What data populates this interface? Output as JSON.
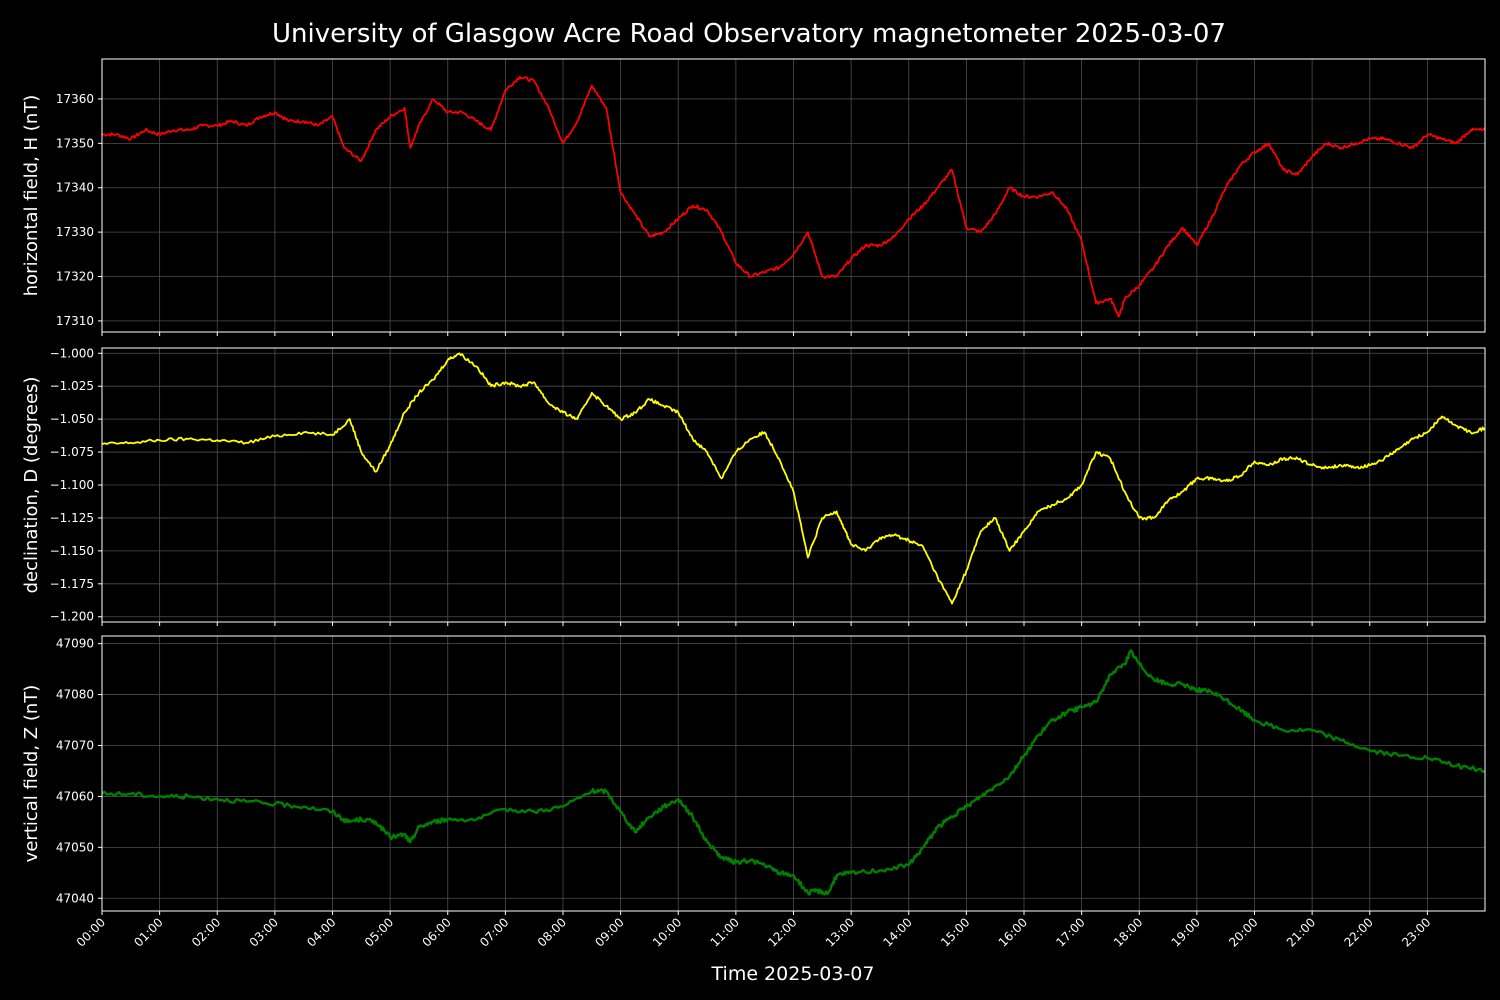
{
  "chart_data": {
    "type": "line",
    "title": "University of Glasgow Acre Road Observatory magnetometer 2025-03-07",
    "xlabel": "Time 2025-03-07",
    "x_ticks": [
      "00:00",
      "01:00",
      "02:00",
      "03:00",
      "04:00",
      "05:00",
      "06:00",
      "07:00",
      "08:00",
      "09:00",
      "10:00",
      "11:00",
      "12:00",
      "13:00",
      "14:00",
      "15:00",
      "16:00",
      "17:00",
      "18:00",
      "19:00",
      "20:00",
      "21:00",
      "22:00",
      "23:00"
    ],
    "xlim_hours": [
      0,
      24
    ],
    "grid": true,
    "panels": [
      {
        "ylabel": "horizontal field, H (nT)",
        "color": "#ff0000",
        "ylim": [
          17307.5,
          17369
        ],
        "y_ticks": [
          17310,
          17320,
          17330,
          17340,
          17350,
          17360
        ],
        "y_tick_labels": [
          "17310",
          "17320",
          "17330",
          "17340",
          "17350",
          "17360"
        ],
        "x": [
          0,
          0.25,
          0.5,
          0.75,
          1.0,
          1.25,
          1.5,
          1.75,
          2.0,
          2.25,
          2.5,
          2.75,
          3.0,
          3.25,
          3.5,
          3.75,
          4.0,
          4.2,
          4.5,
          4.75,
          5.0,
          5.25,
          5.35,
          5.5,
          5.75,
          6.0,
          6.25,
          6.5,
          6.75,
          7.0,
          7.25,
          7.5,
          7.75,
          8.0,
          8.25,
          8.5,
          8.75,
          9.0,
          9.25,
          9.5,
          9.75,
          10.0,
          10.25,
          10.5,
          10.75,
          11.0,
          11.25,
          11.5,
          11.75,
          12.0,
          12.25,
          12.5,
          12.75,
          13.0,
          13.25,
          13.5,
          13.75,
          14.0,
          14.25,
          14.5,
          14.75,
          15.0,
          15.25,
          15.5,
          15.75,
          16.0,
          16.25,
          16.5,
          16.75,
          17.0,
          17.25,
          17.5,
          17.65,
          17.75,
          18.0,
          18.25,
          18.5,
          18.75,
          19.0,
          19.25,
          19.5,
          19.75,
          20.0,
          20.25,
          20.5,
          20.75,
          21.0,
          21.25,
          21.5,
          21.75,
          22.0,
          22.25,
          22.5,
          22.75,
          23.0,
          23.25,
          23.5,
          23.75,
          24.0
        ],
        "y": [
          17352,
          17352,
          17351,
          17353,
          17352,
          17353,
          17353,
          17354,
          17354,
          17355,
          17354,
          17356,
          17357,
          17355,
          17355,
          17354,
          17356,
          17349,
          17346,
          17353,
          17356,
          17358,
          17349,
          17354,
          17360,
          17357,
          17357,
          17355,
          17353,
          17362,
          17365,
          17364,
          17358,
          17350,
          17355,
          17363,
          17358,
          17339,
          17334,
          17329,
          17330,
          17333,
          17336,
          17335,
          17330,
          17323,
          17320,
          17321,
          17322,
          17325,
          17330,
          17320,
          17320,
          17324,
          17327,
          17327,
          17329,
          17333,
          17336,
          17340,
          17344,
          17331,
          17330,
          17334,
          17340,
          17338,
          17338,
          17339,
          17335,
          17328,
          17314,
          17315,
          17311,
          17315,
          17318,
          17322,
          17327,
          17331,
          17327,
          17333,
          17340,
          17345,
          17348,
          17350,
          17344,
          17343,
          17347,
          17350,
          17349,
          17350,
          17351,
          17351,
          17350,
          17349,
          17352,
          17351,
          17350,
          17353,
          17353
        ]
      },
      {
        "ylabel": "declination, D (degrees)",
        "color": "#ffff00",
        "ylim": [
          -1.204,
          -0.996
        ],
        "y_ticks": [
          -1.2,
          -1.175,
          -1.15,
          -1.125,
          -1.1,
          -1.075,
          -1.05,
          -1.025,
          -1.0
        ],
        "y_tick_labels": [
          "−1.200",
          "−1.175",
          "−1.150",
          "−1.125",
          "−1.100",
          "−1.075",
          "−1.050",
          "−1.025",
          "−1.000"
        ],
        "x": [
          0,
          0.5,
          1.0,
          1.5,
          2.0,
          2.5,
          3.0,
          3.5,
          4.0,
          4.3,
          4.5,
          4.75,
          5.0,
          5.25,
          5.5,
          5.75,
          6.0,
          6.2,
          6.5,
          6.75,
          7.0,
          7.25,
          7.5,
          7.75,
          8.0,
          8.25,
          8.5,
          8.75,
          9.0,
          9.25,
          9.5,
          9.75,
          10.0,
          10.25,
          10.5,
          10.75,
          11.0,
          11.25,
          11.5,
          11.75,
          12.0,
          12.25,
          12.5,
          12.75,
          12.9,
          13.0,
          13.25,
          13.5,
          13.75,
          14.0,
          14.25,
          14.5,
          14.75,
          15.0,
          15.25,
          15.5,
          15.75,
          16.0,
          16.25,
          16.5,
          16.75,
          17.0,
          17.25,
          17.5,
          17.75,
          18.0,
          18.25,
          18.5,
          18.75,
          19.0,
          19.25,
          19.5,
          19.75,
          20.0,
          20.25,
          20.5,
          20.75,
          21.0,
          21.25,
          21.5,
          21.75,
          22.0,
          22.25,
          22.5,
          22.75,
          23.0,
          23.25,
          23.5,
          23.75,
          24.0
        ],
        "y": [
          -1.069,
          -1.068,
          -1.066,
          -1.065,
          -1.066,
          -1.068,
          -1.063,
          -1.06,
          -1.062,
          -1.05,
          -1.075,
          -1.09,
          -1.07,
          -1.045,
          -1.03,
          -1.02,
          -1.005,
          -1.0,
          -1.01,
          -1.025,
          -1.022,
          -1.025,
          -1.022,
          -1.038,
          -1.045,
          -1.05,
          -1.03,
          -1.04,
          -1.05,
          -1.045,
          -1.035,
          -1.04,
          -1.045,
          -1.065,
          -1.075,
          -1.095,
          -1.075,
          -1.065,
          -1.06,
          -1.08,
          -1.105,
          -1.155,
          -1.125,
          -1.12,
          -1.135,
          -1.145,
          -1.15,
          -1.14,
          -1.138,
          -1.142,
          -1.147,
          -1.17,
          -1.19,
          -1.165,
          -1.135,
          -1.125,
          -1.15,
          -1.135,
          -1.12,
          -1.115,
          -1.11,
          -1.1,
          -1.075,
          -1.08,
          -1.105,
          -1.125,
          -1.125,
          -1.112,
          -1.105,
          -1.095,
          -1.095,
          -1.097,
          -1.093,
          -1.082,
          -1.085,
          -1.08,
          -1.08,
          -1.085,
          -1.087,
          -1.085,
          -1.087,
          -1.085,
          -1.08,
          -1.073,
          -1.065,
          -1.06,
          -1.048,
          -1.055,
          -1.06,
          -1.057
        ]
      },
      {
        "ylabel": "vertical field, Z (nT)",
        "color": "#008000",
        "ylim": [
          47037.5,
          47091.5
        ],
        "y_ticks": [
          47040,
          47050,
          47060,
          47070,
          47080,
          47090
        ],
        "y_tick_labels": [
          "47040",
          "47050",
          "47060",
          "47070",
          "47080",
          "47090"
        ],
        "x": [
          0,
          0.5,
          1.0,
          1.5,
          2.0,
          2.5,
          3.0,
          3.5,
          4.0,
          4.25,
          4.5,
          4.75,
          5.0,
          5.25,
          5.35,
          5.5,
          5.75,
          6.0,
          6.5,
          7.0,
          7.5,
          8.0,
          8.5,
          8.75,
          9.0,
          9.25,
          9.5,
          9.75,
          10.0,
          10.25,
          10.5,
          10.75,
          11.0,
          11.25,
          11.5,
          11.75,
          12.0,
          12.25,
          12.4,
          12.6,
          12.75,
          13.0,
          13.5,
          14.0,
          14.25,
          14.5,
          14.75,
          15.0,
          15.25,
          15.5,
          15.75,
          16.0,
          16.25,
          16.5,
          16.75,
          17.0,
          17.25,
          17.5,
          17.75,
          17.85,
          18.0,
          18.25,
          18.5,
          18.75,
          19.0,
          19.25,
          19.5,
          19.75,
          20.0,
          20.5,
          21.0,
          21.5,
          22.0,
          22.5,
          23.0,
          23.5,
          24.0
        ],
        "y": [
          47060.5,
          47060.5,
          47060,
          47060,
          47059.5,
          47059,
          47058.5,
          47058,
          47057,
          47055,
          47055.5,
          47055,
          47052,
          47052.5,
          47051,
          47054,
          47055,
          47055.5,
          47055.5,
          47057.5,
          47057,
          47058,
          47061,
          47061,
          47057,
          47053,
          47056,
          47058,
          47059.5,
          47056,
          47051,
          47048,
          47047,
          47047.5,
          47046.5,
          47045,
          47044.5,
          47041,
          47041.5,
          47041,
          47044.5,
          47045,
          47045.5,
          47046.5,
          47050,
          47054,
          47056,
          47058,
          47060,
          47062,
          47064,
          47068,
          47072,
          47075,
          47076.5,
          47077.5,
          47078.5,
          47084,
          47086,
          47088.5,
          47086,
          47083,
          47082,
          47082,
          47081,
          47080.5,
          47079,
          47077,
          47075,
          47073,
          47073,
          47071,
          47069,
          47068,
          47067.5,
          47066,
          47065
        ]
      }
    ]
  }
}
